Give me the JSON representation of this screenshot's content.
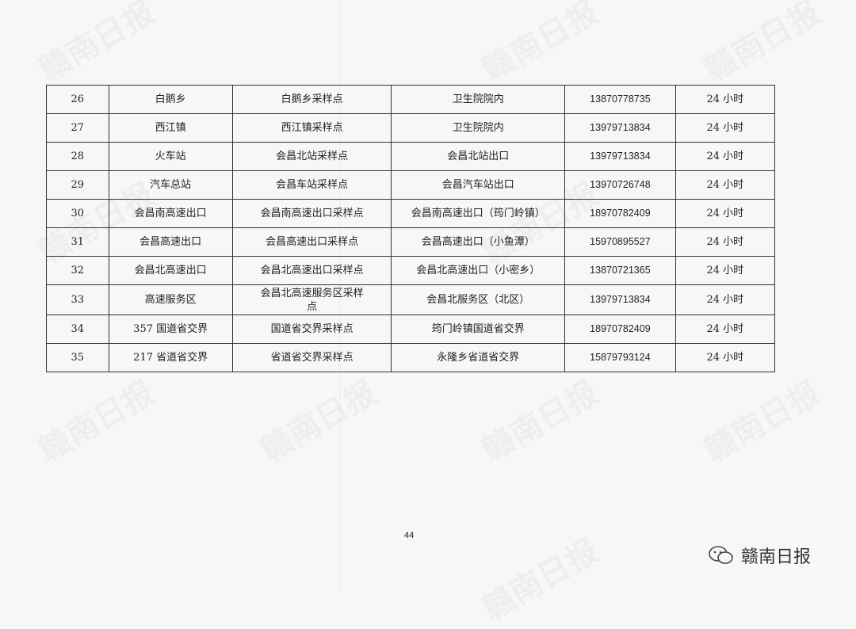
{
  "watermark": "赣南日报",
  "table": {
    "rows": [
      [
        "26",
        "白鹅乡",
        "白鹅乡采样点",
        "卫生院院内",
        "13870778735",
        "24 小时"
      ],
      [
        "27",
        "西江镇",
        "西江镇采样点",
        "卫生院院内",
        "13979713834",
        "24 小时"
      ],
      [
        "28",
        "火车站",
        "会昌北站采样点",
        "会昌北站出口",
        "13979713834",
        "24 小时"
      ],
      [
        "29",
        "汽车总站",
        "会昌车站采样点",
        "会昌汽车站出口",
        "13970726748",
        "24 小时"
      ],
      [
        "30",
        "会昌南高速出口",
        "会昌南高速出口采样点",
        "会昌南高速出口（筠门岭镇）",
        "18970782409",
        "24 小时"
      ],
      [
        "31",
        "会昌高速出口",
        "会昌高速出口采样点",
        "会昌高速出口（小鱼潭）",
        "15970895527",
        "24 小时"
      ],
      [
        "32",
        "会昌北高速出口",
        "会昌北高速出口采样点",
        "会昌北高速出口（小密乡）",
        "13870721365",
        "24 小时"
      ],
      [
        "33",
        "高速服务区",
        "会昌北高速服务区采样点",
        "会昌北服务区（北区）",
        "13979713834",
        "24 小时"
      ],
      [
        "34",
        "357 国道省交界",
        "国道省交界采样点",
        "筠门岭镇国道省交界",
        "18970782409",
        "24 小时"
      ],
      [
        "35",
        "217 省道省交界",
        "省道省交界采样点",
        "永隆乡省道省交界",
        "15879793124",
        "24 小时"
      ]
    ]
  },
  "page_number": "44",
  "brand": {
    "icon": "wechat-icon",
    "name": "赣南日报"
  }
}
